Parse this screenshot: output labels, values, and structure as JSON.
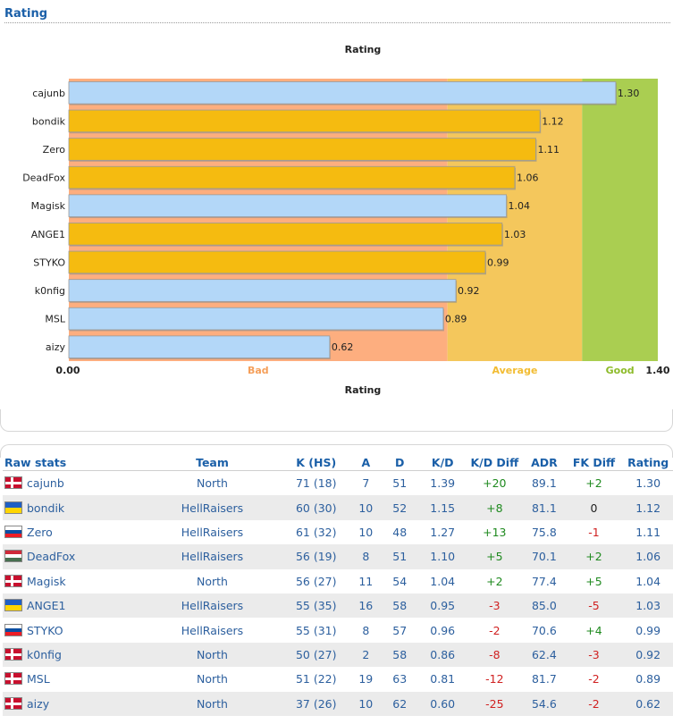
{
  "header": {
    "title": "Rating"
  },
  "chart_data": {
    "type": "bar",
    "orientation": "horizontal",
    "title": "Rating",
    "xlabel": "Rating",
    "xlim": [
      0,
      1.4
    ],
    "tick_labels": {
      "min": "0.00",
      "max": "1.40"
    },
    "zones": [
      {
        "label": "Bad",
        "from": 0,
        "to": 0.9,
        "color": "#fdae7f",
        "label_color": "#f59f5a"
      },
      {
        "label": "Average",
        "from": 0.9,
        "to": 1.22,
        "color": "#f4c75c",
        "label_color": "#f2bc32"
      },
      {
        "label": "Good",
        "from": 1.22,
        "to": 1.4,
        "color": "#aace51",
        "label_color": "#8dbb2a"
      }
    ],
    "categories": [
      "cajunb",
      "bondik",
      "Zero",
      "DeadFox",
      "Magisk",
      "ANGE1",
      "STYKO",
      "k0nfig",
      "MSL",
      "aizy"
    ],
    "values": [
      1.3,
      1.12,
      1.11,
      1.06,
      1.04,
      1.03,
      0.99,
      0.92,
      0.89,
      0.62
    ],
    "value_labels": [
      "1.30",
      "1.12",
      "1.11",
      "1.06",
      "1.04",
      "1.03",
      "0.99",
      "0.92",
      "0.89",
      "0.62"
    ],
    "bar_colors": [
      "#b3d7f8",
      "#f5bb10",
      "#f5bb10",
      "#f5bb10",
      "#b3d7f8",
      "#f5bb10",
      "#f5bb10",
      "#b3d7f8",
      "#b3d7f8",
      "#b3d7f8"
    ]
  },
  "stats": {
    "title": "Raw stats",
    "columns": [
      "Team",
      "K (HS)",
      "A",
      "D",
      "K/D",
      "K/D Diff",
      "ADR",
      "FK Diff",
      "Rating"
    ],
    "rows": [
      {
        "flag": "denmark",
        "player": "cajunb",
        "team": "North",
        "k_hs": "71 (18)",
        "a": "7",
        "d": "51",
        "kd": "1.39",
        "kd_diff": "+20",
        "adr": "89.1",
        "fk_diff": "+2",
        "rating": "1.30"
      },
      {
        "flag": "ukraine",
        "player": "bondik",
        "team": "HellRaisers",
        "k_hs": "60 (30)",
        "a": "10",
        "d": "52",
        "kd": "1.15",
        "kd_diff": "+8",
        "adr": "81.1",
        "fk_diff": "0",
        "rating": "1.12"
      },
      {
        "flag": "slovakia",
        "player": "Zero",
        "team": "HellRaisers",
        "k_hs": "61 (32)",
        "a": "10",
        "d": "48",
        "kd": "1.27",
        "kd_diff": "+13",
        "adr": "75.8",
        "fk_diff": "-1",
        "rating": "1.11"
      },
      {
        "flag": "hungary",
        "player": "DeadFox",
        "team": "HellRaisers",
        "k_hs": "56 (19)",
        "a": "8",
        "d": "51",
        "kd": "1.10",
        "kd_diff": "+5",
        "adr": "70.1",
        "fk_diff": "+2",
        "rating": "1.06"
      },
      {
        "flag": "denmark",
        "player": "Magisk",
        "team": "North",
        "k_hs": "56 (27)",
        "a": "11",
        "d": "54",
        "kd": "1.04",
        "kd_diff": "+2",
        "adr": "77.4",
        "fk_diff": "+5",
        "rating": "1.04"
      },
      {
        "flag": "ukraine",
        "player": "ANGE1",
        "team": "HellRaisers",
        "k_hs": "55 (35)",
        "a": "16",
        "d": "58",
        "kd": "0.95",
        "kd_diff": "-3",
        "adr": "85.0",
        "fk_diff": "-5",
        "rating": "1.03"
      },
      {
        "flag": "slovakia",
        "player": "STYKO",
        "team": "HellRaisers",
        "k_hs": "55 (31)",
        "a": "8",
        "d": "57",
        "kd": "0.96",
        "kd_diff": "-2",
        "adr": "70.6",
        "fk_diff": "+4",
        "rating": "0.99"
      },
      {
        "flag": "denmark",
        "player": "k0nfig",
        "team": "North",
        "k_hs": "50 (27)",
        "a": "2",
        "d": "58",
        "kd": "0.86",
        "kd_diff": "-8",
        "adr": "62.4",
        "fk_diff": "-3",
        "rating": "0.92"
      },
      {
        "flag": "denmark",
        "player": "MSL",
        "team": "North",
        "k_hs": "51 (22)",
        "a": "19",
        "d": "63",
        "kd": "0.81",
        "kd_diff": "-12",
        "adr": "81.7",
        "fk_diff": "-2",
        "rating": "0.89"
      },
      {
        "flag": "denmark",
        "player": "aizy",
        "team": "North",
        "k_hs": "37 (26)",
        "a": "10",
        "d": "62",
        "kd": "0.60",
        "kd_diff": "-25",
        "adr": "54.6",
        "fk_diff": "-2",
        "rating": "0.62"
      }
    ]
  }
}
